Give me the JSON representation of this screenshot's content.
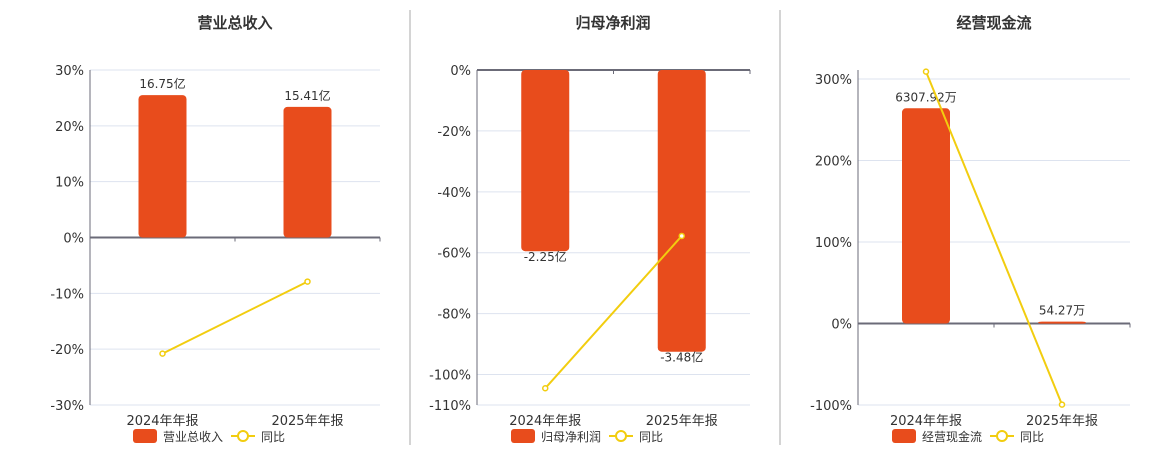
{
  "colors": {
    "bar": "#e84c1c",
    "line": "#f2cd0f",
    "grid": "#dde3ef",
    "axis": "#6b6b78",
    "divider": "#aaaaaa"
  },
  "chart_data": [
    {
      "type": "bar+line",
      "title": "营业总收入",
      "categories": [
        "2024年年报",
        "2025年年报"
      ],
      "ylim": [
        -30,
        30
      ],
      "yticks": [
        30,
        20,
        10,
        0,
        -10,
        -20,
        -30
      ],
      "tick_labels": [
        "30%",
        "20%",
        "10%",
        "0%",
        "-10%",
        "-20%",
        "-30%"
      ],
      "grid": true,
      "bar_series": {
        "name": "营业总收入",
        "values": [
          25.5,
          23.4
        ],
        "labels": [
          "16.75亿",
          "15.41亿"
        ]
      },
      "line_series": {
        "name": "同比",
        "values": [
          -20.8,
          -7.9
        ]
      },
      "label_position": "above",
      "legend": "bottom"
    },
    {
      "type": "bar+line",
      "title": "归母净利润",
      "categories": [
        "2024年年报",
        "2025年年报"
      ],
      "ylim": [
        -110,
        0
      ],
      "yticks": [
        0,
        -20,
        -40,
        -60,
        -80,
        -100,
        -110
      ],
      "tick_labels": [
        "0%",
        "-20%",
        "-40%",
        "-60%",
        "-80%",
        "-100%",
        "-110%"
      ],
      "grid": true,
      "bar_series": {
        "name": "归母净利润",
        "values": [
          -59.5,
          -92.5
        ],
        "labels": [
          "-2.25亿",
          "-3.48亿"
        ]
      },
      "line_series": {
        "name": "同比",
        "values": [
          -104.5,
          -54.5
        ]
      },
      "label_position": "below",
      "legend": "bottom"
    },
    {
      "type": "bar+line",
      "title": "经营现金流",
      "categories": [
        "2024年年报",
        "2025年年报"
      ],
      "ylim": [
        -100,
        311
      ],
      "yticks": [
        300,
        200,
        100,
        0,
        -100
      ],
      "tick_labels": [
        "300%",
        "200%",
        "100%",
        "0%",
        "-100%"
      ],
      "grid": true,
      "bar_series": {
        "name": "经营现金流",
        "values": [
          264,
          2.3
        ],
        "labels": [
          "6307.92万",
          "54.27万"
        ]
      },
      "line_series": {
        "name": "同比",
        "values": [
          309,
          -99.5
        ]
      },
      "label_position": "above",
      "legend": "bottom"
    }
  ]
}
